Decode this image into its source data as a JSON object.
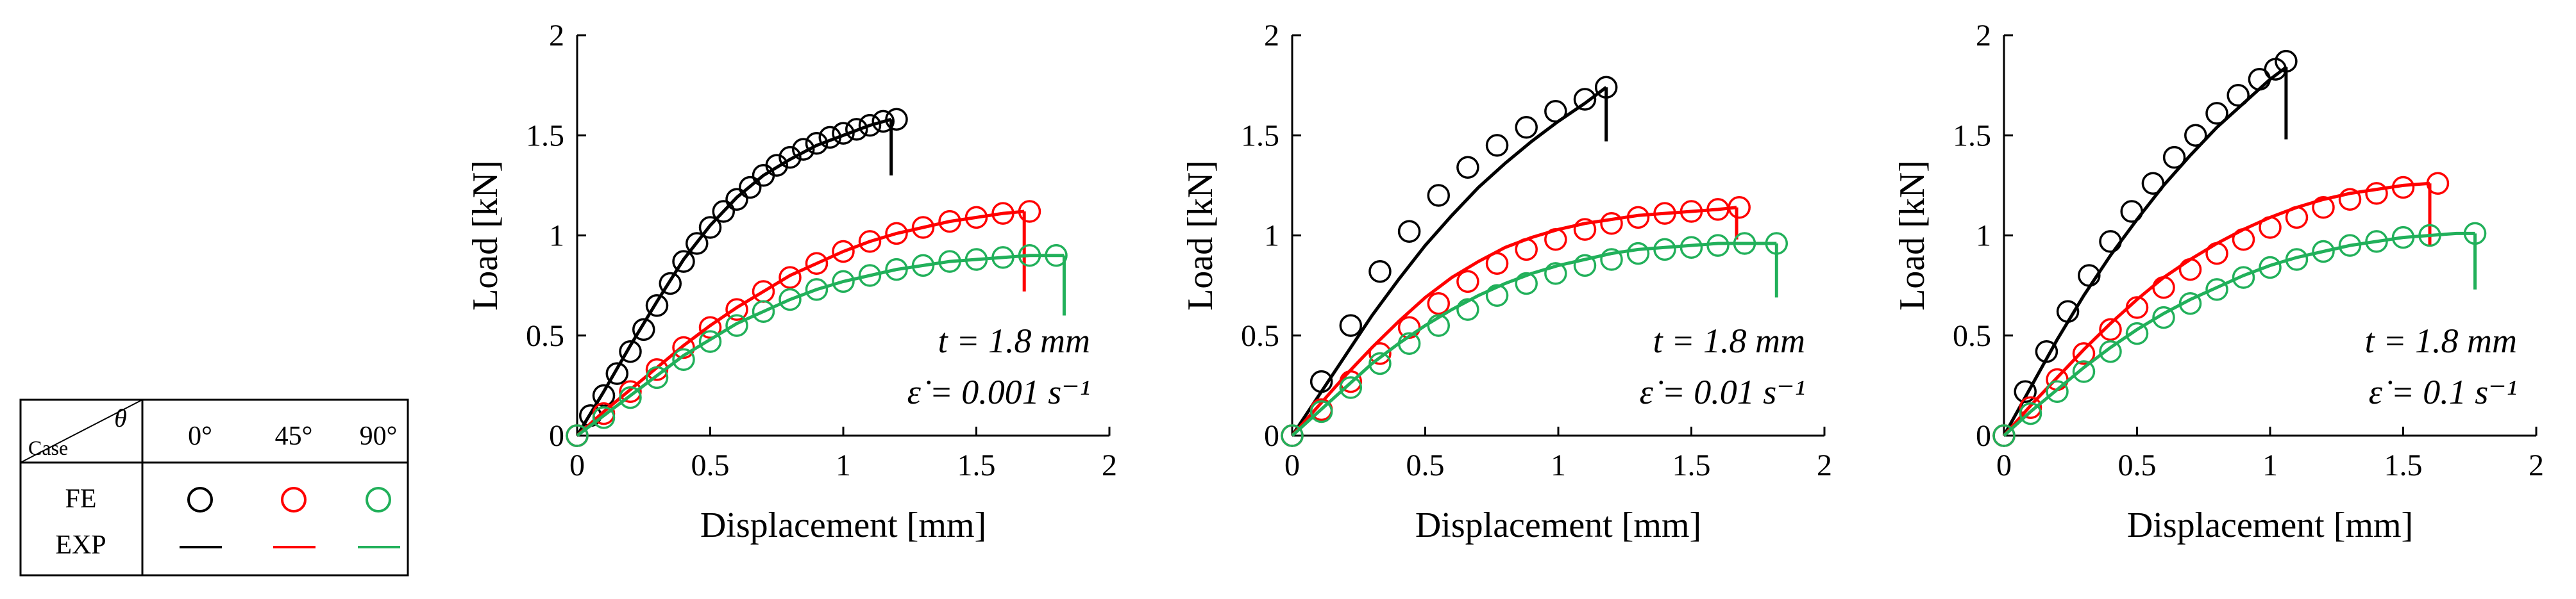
{
  "legend": {
    "theta_symbol": "θ",
    "case_label": "Case",
    "columns": [
      "0°",
      "45°",
      "90°"
    ],
    "rows": [
      {
        "label": "FE",
        "marker": "circle"
      },
      {
        "label": "EXP",
        "marker": "line"
      }
    ],
    "colors": [
      "#000000",
      "#ff0000",
      "#21b05a"
    ]
  },
  "chart_data": [
    {
      "type": "line",
      "xlabel": "Displacement [mm]",
      "ylabel": "Load [kN]",
      "xlim": [
        0,
        2
      ],
      "ylim": [
        0,
        2
      ],
      "xticks": [
        "0",
        "0.5",
        "1",
        "1.5",
        "2"
      ],
      "yticks": [
        "0",
        "0.5",
        "1",
        "1.5",
        "2"
      ],
      "annotation_thickness": "t = 1.8 mm",
      "annotation_rate": "ε̇ = 0.001 s⁻¹",
      "series": [
        {
          "name": "0°",
          "color": "#000000",
          "exp": {
            "x": [
              0,
              0.1,
              0.2,
              0.3,
              0.4,
              0.5,
              0.6,
              0.7,
              0.8,
              0.9,
              1.0,
              1.1,
              1.18
            ],
            "y": [
              0,
              0.22,
              0.45,
              0.67,
              0.88,
              1.05,
              1.19,
              1.3,
              1.38,
              1.45,
              1.5,
              1.55,
              1.58
            ],
            "drop_to": 1.3
          },
          "fe": {
            "x": [
              0,
              0.05,
              0.1,
              0.15,
              0.2,
              0.25,
              0.3,
              0.35,
              0.4,
              0.45,
              0.5,
              0.55,
              0.6,
              0.65,
              0.7,
              0.75,
              0.8,
              0.85,
              0.9,
              0.95,
              1.0,
              1.05,
              1.1,
              1.15,
              1.2
            ],
            "y": [
              0,
              0.1,
              0.2,
              0.31,
              0.42,
              0.53,
              0.65,
              0.76,
              0.87,
              0.96,
              1.04,
              1.12,
              1.18,
              1.24,
              1.3,
              1.35,
              1.39,
              1.43,
              1.46,
              1.49,
              1.51,
              1.53,
              1.55,
              1.57,
              1.58
            ]
          }
        },
        {
          "name": "45°",
          "color": "#ff0000",
          "exp": {
            "x": [
              0,
              0.1,
              0.2,
              0.3,
              0.4,
              0.5,
              0.6,
              0.7,
              0.8,
              0.9,
              1.0,
              1.1,
              1.2,
              1.3,
              1.4,
              1.5,
              1.6,
              1.68
            ],
            "y": [
              0,
              0.12,
              0.23,
              0.34,
              0.45,
              0.55,
              0.64,
              0.72,
              0.8,
              0.86,
              0.92,
              0.97,
              1.01,
              1.04,
              1.07,
              1.09,
              1.11,
              1.12
            ],
            "drop_to": 0.72
          },
          "fe": {
            "x": [
              0,
              0.1,
              0.2,
              0.3,
              0.4,
              0.5,
              0.6,
              0.7,
              0.8,
              0.9,
              1.0,
              1.1,
              1.2,
              1.3,
              1.4,
              1.5,
              1.6,
              1.7
            ],
            "y": [
              0,
              0.11,
              0.22,
              0.33,
              0.44,
              0.54,
              0.63,
              0.72,
              0.79,
              0.86,
              0.92,
              0.97,
              1.01,
              1.04,
              1.07,
              1.09,
              1.11,
              1.12
            ]
          }
        },
        {
          "name": "90°",
          "color": "#21b05a",
          "exp": {
            "x": [
              0,
              0.1,
              0.2,
              0.3,
              0.4,
              0.5,
              0.6,
              0.7,
              0.8,
              0.9,
              1.0,
              1.1,
              1.2,
              1.3,
              1.4,
              1.5,
              1.6,
              1.7,
              1.83
            ],
            "y": [
              0,
              0.1,
              0.2,
              0.3,
              0.4,
              0.48,
              0.56,
              0.62,
              0.68,
              0.73,
              0.77,
              0.8,
              0.83,
              0.85,
              0.87,
              0.88,
              0.89,
              0.9,
              0.9
            ],
            "drop_to": 0.6
          },
          "fe": {
            "x": [
              0,
              0.1,
              0.2,
              0.3,
              0.4,
              0.5,
              0.6,
              0.7,
              0.8,
              0.9,
              1.0,
              1.1,
              1.2,
              1.3,
              1.4,
              1.5,
              1.6,
              1.7,
              1.8
            ],
            "y": [
              0,
              0.09,
              0.19,
              0.29,
              0.38,
              0.47,
              0.55,
              0.62,
              0.68,
              0.73,
              0.77,
              0.8,
              0.83,
              0.85,
              0.87,
              0.88,
              0.89,
              0.9,
              0.9
            ]
          }
        }
      ]
    },
    {
      "type": "line",
      "xlabel": "Displacement [mm]",
      "ylabel": "Load [kN]",
      "xlim": [
        0,
        2
      ],
      "ylim": [
        0,
        2
      ],
      "xticks": [
        "0",
        "0.5",
        "1",
        "1.5",
        "2"
      ],
      "yticks": [
        "0",
        "0.5",
        "1",
        "1.5",
        "2"
      ],
      "annotation_thickness": "t = 1.8 mm",
      "annotation_rate": "ε̇ = 0.01 s⁻¹",
      "series": [
        {
          "name": "0°",
          "color": "#000000",
          "exp": {
            "x": [
              0,
              0.1,
              0.2,
              0.3,
              0.4,
              0.5,
              0.6,
              0.7,
              0.8,
              0.9,
              1.0,
              1.1,
              1.18
            ],
            "y": [
              0,
              0.2,
              0.4,
              0.6,
              0.78,
              0.95,
              1.1,
              1.24,
              1.36,
              1.47,
              1.57,
              1.66,
              1.74
            ],
            "drop_to": 1.47
          },
          "fe": {
            "x": [
              0,
              0.11,
              0.22,
              0.33,
              0.44,
              0.55,
              0.66,
              0.77,
              0.88,
              0.99,
              1.1,
              1.18
            ],
            "y": [
              0,
              0.27,
              0.55,
              0.82,
              1.02,
              1.2,
              1.34,
              1.45,
              1.54,
              1.62,
              1.68,
              1.74
            ]
          }
        },
        {
          "name": "45°",
          "color": "#ff0000",
          "exp": {
            "x": [
              0,
              0.1,
              0.2,
              0.3,
              0.4,
              0.5,
              0.6,
              0.7,
              0.8,
              0.9,
              1.0,
              1.1,
              1.2,
              1.3,
              1.4,
              1.5,
              1.6,
              1.67
            ],
            "y": [
              0,
              0.15,
              0.3,
              0.44,
              0.57,
              0.69,
              0.79,
              0.87,
              0.94,
              0.99,
              1.03,
              1.06,
              1.08,
              1.1,
              1.11,
              1.12,
              1.13,
              1.14
            ],
            "drop_to": 0.98
          },
          "fe": {
            "x": [
              0,
              0.11,
              0.22,
              0.33,
              0.44,
              0.55,
              0.66,
              0.77,
              0.88,
              0.99,
              1.1,
              1.2,
              1.3,
              1.4,
              1.5,
              1.6,
              1.68
            ],
            "y": [
              0,
              0.13,
              0.27,
              0.41,
              0.54,
              0.66,
              0.77,
              0.86,
              0.93,
              0.98,
              1.03,
              1.06,
              1.09,
              1.11,
              1.12,
              1.13,
              1.14
            ]
          }
        },
        {
          "name": "90°",
          "color": "#21b05a",
          "exp": {
            "x": [
              0,
              0.1,
              0.2,
              0.3,
              0.4,
              0.5,
              0.6,
              0.7,
              0.8,
              0.9,
              1.0,
              1.1,
              1.2,
              1.3,
              1.4,
              1.5,
              1.6,
              1.7,
              1.82
            ],
            "y": [
              0,
              0.12,
              0.24,
              0.36,
              0.46,
              0.55,
              0.63,
              0.7,
              0.76,
              0.81,
              0.85,
              0.88,
              0.91,
              0.93,
              0.94,
              0.95,
              0.96,
              0.96,
              0.96
            ],
            "drop_to": 0.69
          },
          "fe": {
            "x": [
              0,
              0.11,
              0.22,
              0.33,
              0.44,
              0.55,
              0.66,
              0.77,
              0.88,
              0.99,
              1.1,
              1.2,
              1.3,
              1.4,
              1.5,
              1.6,
              1.7,
              1.82
            ],
            "y": [
              0,
              0.12,
              0.24,
              0.36,
              0.46,
              0.55,
              0.63,
              0.7,
              0.76,
              0.81,
              0.85,
              0.88,
              0.91,
              0.93,
              0.94,
              0.95,
              0.96,
              0.96
            ]
          }
        }
      ]
    },
    {
      "type": "line",
      "xlabel": "Displacement [mm]",
      "ylabel": "Load [kN]",
      "xlim": [
        0,
        2
      ],
      "ylim": [
        0,
        2
      ],
      "xticks": [
        "0",
        "0.5",
        "1",
        "1.5",
        "2"
      ],
      "yticks": [
        "0",
        "0.5",
        "1",
        "1.5",
        "2"
      ],
      "annotation_thickness": "t = 1.8 mm",
      "annotation_rate": "ε̇ = 0.1 s⁻¹",
      "series": [
        {
          "name": "0°",
          "color": "#000000",
          "exp": {
            "x": [
              0,
              0.1,
              0.2,
              0.3,
              0.4,
              0.5,
              0.6,
              0.7,
              0.8,
              0.9,
              1.0,
              1.06
            ],
            "y": [
              0,
              0.24,
              0.48,
              0.7,
              0.9,
              1.08,
              1.25,
              1.4,
              1.54,
              1.66,
              1.78,
              1.84
            ],
            "drop_to": 1.48
          },
          "fe": {
            "x": [
              0,
              0.08,
              0.16,
              0.24,
              0.32,
              0.4,
              0.48,
              0.56,
              0.64,
              0.72,
              0.8,
              0.88,
              0.96,
              1.02,
              1.06
            ],
            "y": [
              0,
              0.22,
              0.42,
              0.62,
              0.8,
              0.97,
              1.12,
              1.26,
              1.39,
              1.5,
              1.61,
              1.7,
              1.78,
              1.83,
              1.87
            ]
          }
        },
        {
          "name": "45°",
          "color": "#ff0000",
          "exp": {
            "x": [
              0,
              0.1,
              0.2,
              0.3,
              0.4,
              0.5,
              0.6,
              0.7,
              0.8,
              0.9,
              1.0,
              1.1,
              1.2,
              1.3,
              1.4,
              1.5,
              1.6
            ],
            "y": [
              0,
              0.15,
              0.29,
              0.43,
              0.56,
              0.68,
              0.79,
              0.88,
              0.96,
              1.03,
              1.09,
              1.14,
              1.18,
              1.21,
              1.23,
              1.25,
              1.26
            ],
            "drop_to": 0.95
          },
          "fe": {
            "x": [
              0,
              0.1,
              0.2,
              0.3,
              0.4,
              0.5,
              0.6,
              0.7,
              0.8,
              0.9,
              1.0,
              1.1,
              1.2,
              1.3,
              1.4,
              1.5,
              1.63
            ],
            "y": [
              0,
              0.14,
              0.28,
              0.41,
              0.53,
              0.64,
              0.74,
              0.83,
              0.91,
              0.98,
              1.04,
              1.09,
              1.14,
              1.18,
              1.21,
              1.24,
              1.26
            ]
          }
        },
        {
          "name": "90°",
          "color": "#21b05a",
          "exp": {
            "x": [
              0,
              0.1,
              0.2,
              0.3,
              0.4,
              0.5,
              0.6,
              0.7,
              0.8,
              0.9,
              1.0,
              1.1,
              1.2,
              1.3,
              1.4,
              1.5,
              1.6,
              1.7,
              1.77
            ],
            "y": [
              0,
              0.12,
              0.23,
              0.34,
              0.44,
              0.53,
              0.61,
              0.68,
              0.74,
              0.8,
              0.85,
              0.89,
              0.92,
              0.95,
              0.97,
              0.99,
              1.0,
              1.01,
              1.01
            ],
            "drop_to": 0.73
          },
          "fe": {
            "x": [
              0,
              0.1,
              0.2,
              0.3,
              0.4,
              0.5,
              0.6,
              0.7,
              0.8,
              0.9,
              1.0,
              1.1,
              1.2,
              1.3,
              1.4,
              1.5,
              1.6,
              1.77
            ],
            "y": [
              0,
              0.11,
              0.22,
              0.32,
              0.42,
              0.51,
              0.59,
              0.66,
              0.73,
              0.79,
              0.84,
              0.88,
              0.92,
              0.95,
              0.97,
              0.99,
              1.0,
              1.01
            ]
          }
        }
      ]
    }
  ]
}
